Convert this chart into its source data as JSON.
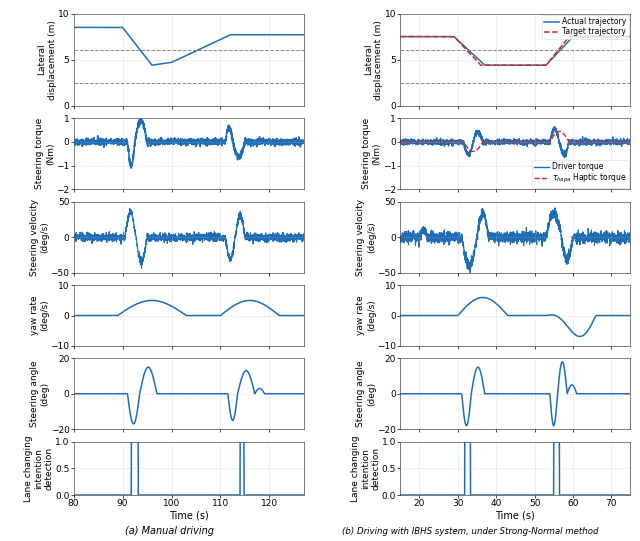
{
  "left": {
    "xlim": [
      80,
      127
    ],
    "xticks": [
      80,
      90,
      100,
      110,
      120
    ],
    "xlabel": "Time (s)",
    "subplots": [
      {
        "ylabel": "Lateral\ndisplacement (m)",
        "ylim": [
          0,
          10
        ],
        "yticks": [
          0,
          5,
          10
        ],
        "hlines": [
          2.5,
          6.0
        ],
        "type": "lateral_left"
      },
      {
        "ylabel": "Steering torque\n(Nm)",
        "ylim": [
          -2,
          1
        ],
        "yticks": [
          -2,
          -1,
          0,
          1
        ],
        "type": "torque_left"
      },
      {
        "ylabel": "Steering velocity\n(deg/s)",
        "ylim": [
          -50,
          50
        ],
        "yticks": [
          -50,
          0,
          50
        ],
        "type": "stvel_left"
      },
      {
        "ylabel": "yaw rate\n(deg/s)",
        "ylim": [
          -10,
          10
        ],
        "yticks": [
          -10,
          0,
          10
        ],
        "type": "yaw_left"
      },
      {
        "ylabel": "Steering angle\n(deg)",
        "ylim": [
          -20,
          20
        ],
        "yticks": [
          -20,
          0,
          20
        ],
        "type": "stang_left"
      },
      {
        "ylabel": "Lane changing\nintention\ndetection",
        "ylim": [
          0,
          1
        ],
        "yticks": [
          0,
          0.5,
          1
        ],
        "type": "intent_left"
      }
    ]
  },
  "right": {
    "xlim": [
      15,
      75
    ],
    "xticks": [
      20,
      30,
      40,
      50,
      60,
      70
    ],
    "xlabel": "Time (s)",
    "subplots": [
      {
        "ylabel": "Lateral\ndisplacement (m)",
        "ylim": [
          0,
          10
        ],
        "yticks": [
          0,
          5,
          10
        ],
        "hlines": [
          2.5,
          6.0
        ],
        "type": "lateral_right"
      },
      {
        "ylabel": "Steering torque\n(Nm)",
        "ylim": [
          -2,
          1
        ],
        "yticks": [
          -2,
          -1,
          0,
          1
        ],
        "type": "torque_right"
      },
      {
        "ylabel": "Steering velocity\n(deg/s)",
        "ylim": [
          -50,
          50
        ],
        "yticks": [
          -50,
          0,
          50
        ],
        "type": "stvel_right"
      },
      {
        "ylabel": "yaw rate\n(deg/s)",
        "ylim": [
          -10,
          10
        ],
        "yticks": [
          -10,
          0,
          10
        ],
        "type": "yaw_right"
      },
      {
        "ylabel": "Steering angle\n(deg)",
        "ylim": [
          -20,
          20
        ],
        "yticks": [
          -20,
          0,
          20
        ],
        "type": "stang_right"
      },
      {
        "ylabel": "Lane changing\nintention\ndetection",
        "ylim": [
          0,
          1
        ],
        "yticks": [
          0,
          0.5,
          1
        ],
        "type": "intent_right"
      }
    ]
  },
  "colors": {
    "blue": "#1f6db5",
    "red": "#d62728",
    "grid": "#b0b0b0",
    "hline": "#888888"
  },
  "figure_label_a": "(a) Manual driving",
  "figure_label_b": "(b) Driving with IBHS system, under Strong-Normal method"
}
